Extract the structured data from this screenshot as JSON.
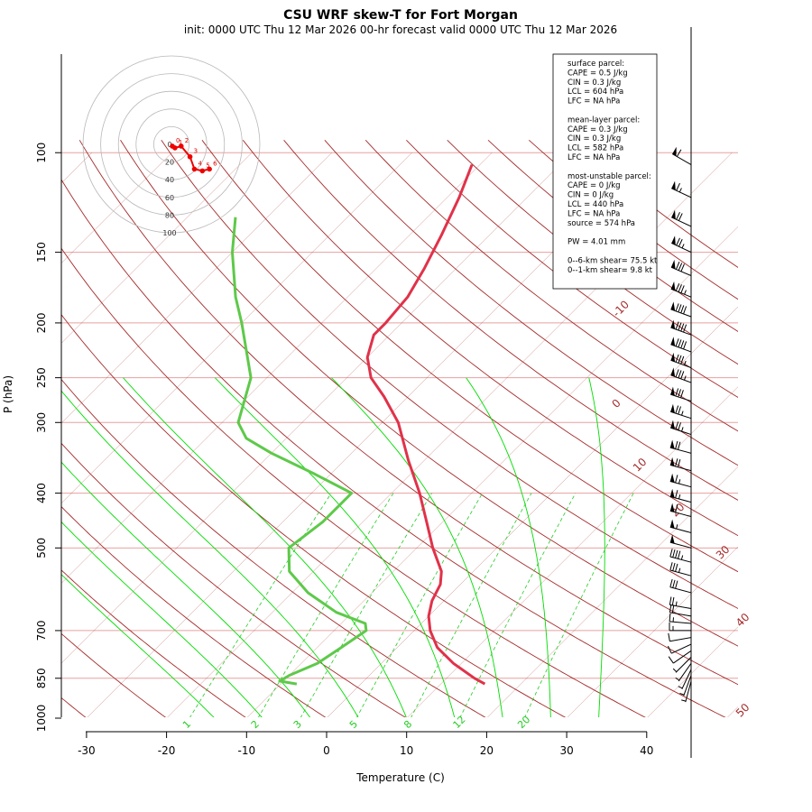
{
  "title": "CSU WRF skew-T for Fort Morgan",
  "subtitle": "init: 0000 UTC Thu 12 Mar 2026     00-hr forecast valid 0000 UTC Thu 12 Mar 2026",
  "colors": {
    "isotherm": "#a52a2a",
    "isobar": "#e8a0a0",
    "dry_adiabat": "#a52a2a",
    "moist_adiabat": "#00dd00",
    "mixing_ratio": "#22cc22",
    "temperature": "#e0324a",
    "dewpoint": "#5ec94a",
    "hodograph": "#ee0000"
  },
  "info_box": {
    "lines": [
      "surface parcel:",
      "CAPE = 0.5 J/kg",
      "CIN = 0.3 J/kg",
      "LCL = 604 hPa",
      "LFC = NA hPa",
      "",
      "mean-layer parcel:",
      "CAPE = 0.3 J/kg",
      "CIN = 0.3 J/kg",
      "LCL = 582 hPa",
      "LFC = NA hPa",
      "",
      "most-unstable parcel:",
      "CAPE = 0 J/kg",
      "CIN = 0 J/kg",
      "LCL = 440 hPa",
      "LFC = NA hPa",
      "source = 574 hPa",
      "",
      "PW =  4.01 mm",
      "",
      "0--6-km shear= 75.5 kt",
      "0--1-km shear= 9.8 kt"
    ]
  },
  "chart_data": {
    "type": "skew-t",
    "title": "CSU WRF skew-T for Fort Morgan",
    "xlabel": "Temperature (C)",
    "ylabel": "P (hPa)",
    "x_ticks": [
      -30,
      -20,
      -10,
      0,
      10,
      20,
      30,
      40
    ],
    "y_ticks": [
      100,
      150,
      200,
      250,
      300,
      400,
      500,
      700,
      850,
      1000
    ],
    "isotherm_labels": [
      -10,
      0,
      10,
      20,
      30,
      40,
      50
    ],
    "mixing_ratio_labels": [
      "1",
      "2",
      "3",
      "5",
      "8",
      "12",
      "20"
    ],
    "temperature_profile": {
      "name": "Temperature",
      "points": [
        {
          "p": 870,
          "t": 15.5
        },
        {
          "p": 850,
          "t": 13.5
        },
        {
          "p": 800,
          "t": 9.0
        },
        {
          "p": 750,
          "t": 5.0
        },
        {
          "p": 700,
          "t": 2.0
        },
        {
          "p": 660,
          "t": 0.0
        },
        {
          "p": 620,
          "t": -1.5
        },
        {
          "p": 580,
          "t": -2.5
        },
        {
          "p": 550,
          "t": -4.0
        },
        {
          "p": 500,
          "t": -8.0
        },
        {
          "p": 450,
          "t": -12.0
        },
        {
          "p": 400,
          "t": -16.5
        },
        {
          "p": 350,
          "t": -22.0
        },
        {
          "p": 300,
          "t": -28.0
        },
        {
          "p": 270,
          "t": -33.0
        },
        {
          "p": 250,
          "t": -37.0
        },
        {
          "p": 230,
          "t": -40.0
        },
        {
          "p": 210,
          "t": -42.0
        },
        {
          "p": 200,
          "t": -42.0
        },
        {
          "p": 180,
          "t": -42.5
        },
        {
          "p": 160,
          "t": -44.0
        },
        {
          "p": 140,
          "t": -46.0
        },
        {
          "p": 120,
          "t": -48.5
        },
        {
          "p": 105,
          "t": -51.0
        }
      ]
    },
    "dewpoint_profile": {
      "name": "Dewpoint",
      "points": [
        {
          "p": 870,
          "t": -8.0
        },
        {
          "p": 860,
          "t": -10.5
        },
        {
          "p": 840,
          "t": -10.0
        },
        {
          "p": 800,
          "t": -8.0
        },
        {
          "p": 750,
          "t": -7.0
        },
        {
          "p": 700,
          "t": -6.0
        },
        {
          "p": 680,
          "t": -7.0
        },
        {
          "p": 650,
          "t": -12.0
        },
        {
          "p": 600,
          "t": -18.0
        },
        {
          "p": 550,
          "t": -23.0
        },
        {
          "p": 500,
          "t": -26.0
        },
        {
          "p": 450,
          "t": -25.0
        },
        {
          "p": 400,
          "t": -25.0
        },
        {
          "p": 370,
          "t": -32.0
        },
        {
          "p": 340,
          "t": -40.0
        },
        {
          "p": 320,
          "t": -45.0
        },
        {
          "p": 300,
          "t": -48.0
        },
        {
          "p": 250,
          "t": -52.0
        },
        {
          "p": 200,
          "t": -60.0
        },
        {
          "p": 180,
          "t": -64.0
        },
        {
          "p": 150,
          "t": -70.0
        },
        {
          "p": 130,
          "t": -74.0
        }
      ]
    },
    "hodograph": {
      "ring_labels": [
        "0",
        "20",
        "40",
        "60",
        "80",
        "100"
      ],
      "point_labels": [
        "0",
        "1",
        "2",
        "3",
        "4",
        "5",
        "6"
      ],
      "points": [
        {
          "u": 1,
          "v": -2
        },
        {
          "u": 4,
          "v": -4
        },
        {
          "u": 11,
          "v": -2
        },
        {
          "u": 21,
          "v": -14
        },
        {
          "u": 26,
          "v": -28
        },
        {
          "u": 35,
          "v": -30
        },
        {
          "u": 43,
          "v": -28
        }
      ]
    },
    "wind_barbs": [
      {
        "p": 105,
        "speed": 60,
        "dir": 300
      },
      {
        "p": 120,
        "speed": 65,
        "dir": 295
      },
      {
        "p": 135,
        "speed": 70,
        "dir": 295
      },
      {
        "p": 150,
        "speed": 75,
        "dir": 295
      },
      {
        "p": 165,
        "speed": 80,
        "dir": 293
      },
      {
        "p": 180,
        "speed": 85,
        "dir": 292
      },
      {
        "p": 195,
        "speed": 90,
        "dir": 290
      },
      {
        "p": 210,
        "speed": 90,
        "dir": 290
      },
      {
        "p": 225,
        "speed": 90,
        "dir": 290
      },
      {
        "p": 240,
        "speed": 85,
        "dir": 290
      },
      {
        "p": 255,
        "speed": 85,
        "dir": 290
      },
      {
        "p": 275,
        "speed": 80,
        "dir": 288
      },
      {
        "p": 295,
        "speed": 75,
        "dir": 288
      },
      {
        "p": 315,
        "speed": 75,
        "dir": 288
      },
      {
        "p": 340,
        "speed": 70,
        "dir": 285
      },
      {
        "p": 365,
        "speed": 70,
        "dir": 285
      },
      {
        "p": 390,
        "speed": 65,
        "dir": 285
      },
      {
        "p": 415,
        "speed": 65,
        "dir": 285
      },
      {
        "p": 440,
        "speed": 60,
        "dir": 285
      },
      {
        "p": 470,
        "speed": 55,
        "dir": 285
      },
      {
        "p": 500,
        "speed": 50,
        "dir": 285
      },
      {
        "p": 530,
        "speed": 45,
        "dir": 285
      },
      {
        "p": 560,
        "speed": 35,
        "dir": 285
      },
      {
        "p": 600,
        "speed": 30,
        "dir": 285
      },
      {
        "p": 640,
        "speed": 25,
        "dir": 280
      },
      {
        "p": 660,
        "speed": 20,
        "dir": 280
      },
      {
        "p": 680,
        "speed": 15,
        "dir": 275
      },
      {
        "p": 700,
        "speed": 15,
        "dir": 270
      },
      {
        "p": 720,
        "speed": 12,
        "dir": 260
      },
      {
        "p": 740,
        "speed": 10,
        "dir": 245
      },
      {
        "p": 760,
        "speed": 10,
        "dir": 235
      },
      {
        "p": 780,
        "speed": 8,
        "dir": 225
      },
      {
        "p": 800,
        "speed": 8,
        "dir": 215
      },
      {
        "p": 820,
        "speed": 6,
        "dir": 205
      },
      {
        "p": 840,
        "speed": 5,
        "dir": 200
      },
      {
        "p": 860,
        "speed": 5,
        "dir": 195
      }
    ]
  }
}
